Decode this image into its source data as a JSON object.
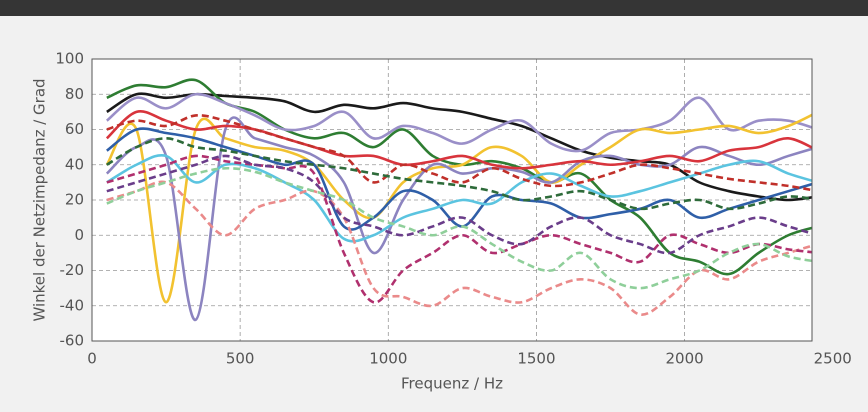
{
  "chart_data": {
    "type": "line",
    "x_label": "Frequenz / Hz",
    "y_label": "Winkel der Netzimpedanz / Grad",
    "x": [
      50,
      150,
      250,
      350,
      450,
      550,
      650,
      750,
      850,
      950,
      1050,
      1150,
      1250,
      1350,
      1450,
      1550,
      1650,
      1750,
      1850,
      1950,
      2050,
      2150,
      2250,
      2350,
      2450
    ],
    "series": [
      {
        "color": "#1a1a1a",
        "dashed": false,
        "values": [
          70,
          80,
          78,
          80,
          79,
          78,
          76,
          70,
          74,
          72,
          75,
          72,
          70,
          66,
          62,
          55,
          48,
          44,
          42,
          40,
          30,
          25,
          22,
          20,
          22
        ]
      },
      {
        "color": "#2e7d32",
        "dashed": false,
        "values": [
          78,
          85,
          84,
          88,
          75,
          70,
          60,
          55,
          58,
          50,
          60,
          45,
          40,
          42,
          38,
          30,
          35,
          20,
          10,
          -10,
          -15,
          -22,
          -10,
          0,
          5
        ]
      },
      {
        "color": "#9a8fc8",
        "dashed": false,
        "values": [
          65,
          78,
          72,
          80,
          75,
          68,
          60,
          62,
          70,
          55,
          62,
          58,
          52,
          60,
          65,
          52,
          48,
          58,
          60,
          65,
          78,
          60,
          65,
          65,
          60
        ]
      },
      {
        "color": "#f2c230",
        "dashed": false,
        "values": [
          40,
          60,
          -38,
          60,
          55,
          50,
          48,
          40,
          20,
          10,
          30,
          38,
          40,
          50,
          45,
          30,
          40,
          50,
          60,
          58,
          60,
          62,
          58,
          62,
          70
        ]
      },
      {
        "color": "#8c84c0",
        "dashed": false,
        "values": [
          35,
          50,
          45,
          -48,
          60,
          55,
          50,
          45,
          30,
          -10,
          20,
          40,
          35,
          38,
          36,
          30,
          42,
          45,
          40,
          40,
          50,
          45,
          40,
          45,
          50
        ]
      },
      {
        "color": "#2f5fa8",
        "dashed": false,
        "values": [
          48,
          60,
          58,
          55,
          50,
          45,
          40,
          40,
          5,
          10,
          25,
          20,
          5,
          22,
          20,
          18,
          10,
          12,
          15,
          20,
          10,
          15,
          20,
          25,
          30
        ]
      },
      {
        "color": "#d8343c",
        "dashed": false,
        "values": [
          55,
          70,
          65,
          60,
          62,
          60,
          55,
          50,
          45,
          45,
          40,
          42,
          45,
          40,
          38,
          40,
          42,
          40,
          42,
          45,
          42,
          48,
          50,
          55,
          48
        ]
      },
      {
        "color": "#5bc4e0",
        "dashed": false,
        "values": [
          30,
          40,
          45,
          30,
          40,
          38,
          30,
          20,
          -2,
          0,
          10,
          15,
          20,
          18,
          30,
          35,
          28,
          22,
          25,
          30,
          35,
          40,
          42,
          35,
          30
        ]
      },
      {
        "color": "#ea8a8a",
        "dashed": true,
        "values": [
          20,
          25,
          30,
          15,
          0,
          15,
          20,
          25,
          10,
          -30,
          -35,
          -40,
          -30,
          -35,
          -38,
          -30,
          -25,
          -30,
          -45,
          -35,
          -20,
          -25,
          -15,
          -10,
          -5
        ]
      },
      {
        "color": "#b0306e",
        "dashed": true,
        "values": [
          30,
          35,
          40,
          45,
          42,
          40,
          38,
          35,
          -10,
          -38,
          -20,
          -10,
          0,
          -10,
          -5,
          0,
          -5,
          -10,
          -15,
          0,
          -5,
          -10,
          -5,
          -8,
          -10
        ]
      },
      {
        "color": "#6a3d8a",
        "dashed": true,
        "values": [
          25,
          30,
          35,
          40,
          45,
          40,
          38,
          30,
          10,
          5,
          0,
          5,
          10,
          0,
          -5,
          5,
          10,
          0,
          -5,
          -10,
          0,
          5,
          10,
          5,
          0
        ]
      },
      {
        "color": "#8fcf9a",
        "dashed": true,
        "values": [
          18,
          25,
          30,
          35,
          38,
          36,
          30,
          25,
          20,
          10,
          5,
          0,
          5,
          -5,
          -15,
          -20,
          -10,
          -25,
          -30,
          -25,
          -20,
          -10,
          -5,
          -12,
          -15
        ]
      },
      {
        "color": "#c0302a",
        "dashed": true,
        "values": [
          60,
          65,
          62,
          68,
          65,
          60,
          55,
          50,
          45,
          30,
          40,
          35,
          30,
          38,
          32,
          28,
          30,
          35,
          40,
          38,
          35,
          32,
          30,
          28,
          25
        ]
      },
      {
        "color": "#2e6b3a",
        "dashed": true,
        "values": [
          40,
          50,
          55,
          50,
          48,
          45,
          42,
          40,
          38,
          35,
          32,
          30,
          28,
          25,
          20,
          22,
          25,
          20,
          15,
          18,
          20,
          15,
          18,
          22,
          20
        ]
      }
    ],
    "xlim": [
      0,
      2430
    ],
    "ylim": [
      -60,
      100
    ],
    "xticks": [
      0,
      500,
      1000,
      1500,
      2000,
      2500
    ],
    "yticks": [
      -60,
      -40,
      -20,
      0,
      20,
      40,
      60,
      80,
      100
    ],
    "grid": true
  }
}
